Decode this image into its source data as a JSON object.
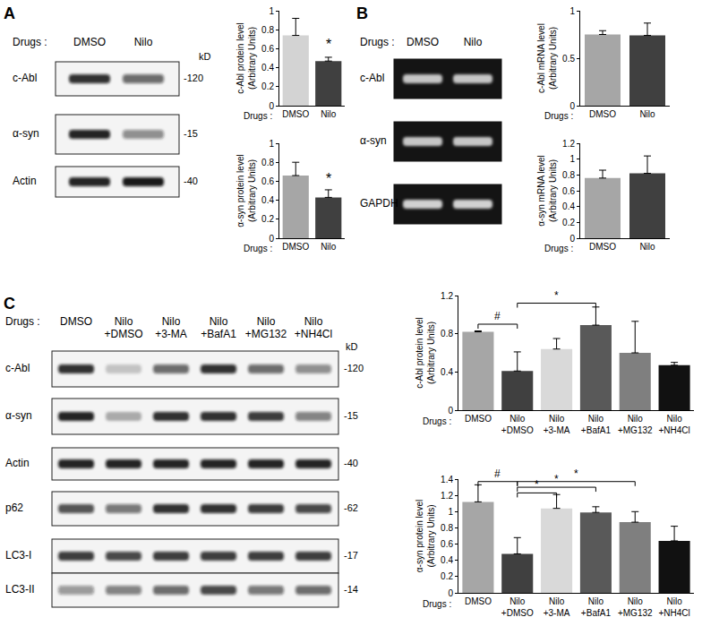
{
  "panel_labels": [
    "A",
    "B",
    "C"
  ],
  "blots": [
    {
      "header": "Drugs :",
      "lanes": [
        "DMSO",
        "Nilo"
      ],
      "size_header": "kD",
      "style": "western",
      "rows": [
        {
          "label": "c-Abl",
          "size": "-120",
          "signal": [
            0.85,
            0.6
          ]
        },
        {
          "label": "α-syn",
          "size": "-15",
          "signal": [
            0.9,
            0.45
          ]
        },
        {
          "label": "Actin",
          "size": "-40",
          "signal": [
            0.9,
            0.95
          ]
        }
      ]
    },
    {
      "header": "Drugs :",
      "lanes": [
        "DMSO",
        "Nilo"
      ],
      "style": "gel",
      "rows": [
        {
          "label": "c-Abl",
          "signal": [
            0.8,
            0.8
          ]
        },
        {
          "label": "α-syn",
          "signal": [
            0.8,
            0.8
          ]
        },
        {
          "label": "GAPDH",
          "signal": [
            0.85,
            0.85
          ]
        }
      ]
    },
    {
      "header": "Drugs :",
      "lanes": [
        "DMSO",
        "Nilo\n+DMSO",
        "Nilo\n+3-MA",
        "Nilo\n+BafA1",
        "Nilo\n+MG132",
        "Nilo\n+NH4Cl"
      ],
      "size_header": "kD",
      "style": "western",
      "rows": [
        {
          "label": "c-Abl",
          "size": "-120",
          "signal": [
            0.85,
            0.2,
            0.6,
            0.85,
            0.6,
            0.45
          ]
        },
        {
          "label": "α-syn",
          "size": "-15",
          "signal": [
            0.9,
            0.3,
            0.85,
            0.85,
            0.8,
            0.5
          ]
        },
        {
          "label": "Actin",
          "size": "-40",
          "signal": [
            0.9,
            0.9,
            0.9,
            0.9,
            0.9,
            0.9
          ]
        },
        {
          "label": "p62",
          "size": "-62",
          "signal": [
            0.7,
            0.55,
            0.85,
            0.85,
            0.8,
            0.75
          ]
        },
        {
          "label": "LC3-I",
          "size": "-17",
          "signal": [
            0.8,
            0.75,
            0.8,
            0.8,
            0.8,
            0.8
          ]
        },
        {
          "label": "LC3-II",
          "size": "-14",
          "signal": [
            0.4,
            0.5,
            0.6,
            0.75,
            0.55,
            0.6
          ]
        }
      ]
    }
  ],
  "chart_data": [
    {
      "type": "bar",
      "categories": [
        "DMSO",
        "Nilo"
      ],
      "values": [
        0.74,
        0.47
      ],
      "errors": [
        0.18,
        0.04
      ],
      "colors": [
        "#d3d3d3",
        "#404040"
      ],
      "ylabel": "c-Abl protein level\n(Arbitrary Units)",
      "xlabel": "Drugs :",
      "ylim": [
        0,
        1
      ],
      "yticks": [
        0,
        0.2,
        0.4,
        0.6,
        0.8,
        1
      ],
      "annotations": [
        {
          "text": "*",
          "x": "Nilo",
          "y": 0.55
        }
      ]
    },
    {
      "type": "bar",
      "categories": [
        "DMSO",
        "Nilo"
      ],
      "values": [
        0.66,
        0.43
      ],
      "errors": [
        0.14,
        0.08
      ],
      "colors": [
        "#a6a6a6",
        "#404040"
      ],
      "ylabel": "α-syn protein level\n(Arbitrary Units)",
      "xlabel": "Drugs :",
      "ylim": [
        0,
        1
      ],
      "yticks": [
        0,
        0.2,
        0.4,
        0.6,
        0.8,
        1
      ],
      "annotations": [
        {
          "text": "*",
          "x": "Nilo",
          "y": 0.53
        }
      ]
    },
    {
      "type": "bar",
      "categories": [
        "DMSO",
        "Nilo"
      ],
      "values": [
        0.75,
        0.74
      ],
      "errors": [
        0.04,
        0.13
      ],
      "colors": [
        "#a6a6a6",
        "#404040"
      ],
      "ylabel": "c-Abl mRNA level\n(Arbitrary Units)",
      "xlabel": "Drugs :",
      "ylim": [
        0,
        1
      ],
      "yticks": [
        0,
        0.5,
        1
      ]
    },
    {
      "type": "bar",
      "categories": [
        "DMSO",
        "Nilo"
      ],
      "values": [
        0.76,
        0.82
      ],
      "errors": [
        0.1,
        0.22
      ],
      "colors": [
        "#a6a6a6",
        "#404040"
      ],
      "ylabel": "α-syn mRNA level\n(Arbitrary Units)",
      "xlabel": "Drugs :",
      "ylim": [
        0,
        1.2
      ],
      "yticks": [
        0,
        0.2,
        0.4,
        0.6,
        0.8,
        1,
        1.2
      ]
    },
    {
      "type": "bar",
      "categories": [
        "DMSO",
        "Nilo\n+DMSO",
        "Nilo\n+3-MA",
        "Nilo\n+BafA1",
        "Nilo\n+MG132",
        "Nilo\n+NH4Cl"
      ],
      "values": [
        0.82,
        0.41,
        0.64,
        0.89,
        0.6,
        0.47
      ],
      "errors": [
        0.01,
        0.2,
        0.11,
        0.19,
        0.33,
        0.03
      ],
      "colors": [
        "#a6a6a6",
        "#404040",
        "#d9d9d9",
        "#595959",
        "#7f7f7f",
        "#111111"
      ],
      "ylabel": "c-Abl protein level\n(Arbitrary Units)",
      "xlabel": "Drugs :",
      "ylim": [
        0,
        1.2
      ],
      "yticks": [
        0,
        0.4,
        0.8,
        1.2
      ],
      "brackets": [
        {
          "text": "#",
          "from": "DMSO",
          "to": "Nilo\n+DMSO",
          "y": 0.9
        },
        {
          "text": "*",
          "from": "Nilo\n+DMSO",
          "to": "Nilo\n+BafA1",
          "y": 1.12
        }
      ]
    },
    {
      "type": "bar",
      "categories": [
        "DMSO",
        "Nilo\n+DMSO",
        "Nilo\n+3-MA",
        "Nilo\n+BafA1",
        "Nilo\n+MG132",
        "Nilo\n+NH4Cl"
      ],
      "values": [
        1.12,
        0.48,
        1.04,
        0.99,
        0.87,
        0.64
      ],
      "errors": [
        0.21,
        0.2,
        0.17,
        0.07,
        0.13,
        0.18
      ],
      "colors": [
        "#a6a6a6",
        "#404040",
        "#d9d9d9",
        "#595959",
        "#7f7f7f",
        "#111111"
      ],
      "ylabel": "α-syn protein level\n(Arbitrary Units)",
      "xlabel": "Drugs :",
      "ylim": [
        0,
        1.4
      ],
      "yticks": [
        0,
        0.2,
        0.4,
        0.6,
        0.8,
        1,
        1.2,
        1.4
      ],
      "brackets": [
        {
          "text": "#",
          "from": "DMSO",
          "to": "Nilo\n+DMSO",
          "y": 1.37
        },
        {
          "text": "*",
          "from": "Nilo\n+DMSO",
          "to": "Nilo\n+3-MA",
          "y": 1.23
        },
        {
          "text": "*",
          "from": "Nilo\n+DMSO",
          "to": "Nilo\n+BafA1",
          "y": 1.3
        },
        {
          "text": "*",
          "from": "Nilo\n+DMSO",
          "to": "Nilo\n+MG132",
          "y": 1.37
        }
      ]
    }
  ]
}
